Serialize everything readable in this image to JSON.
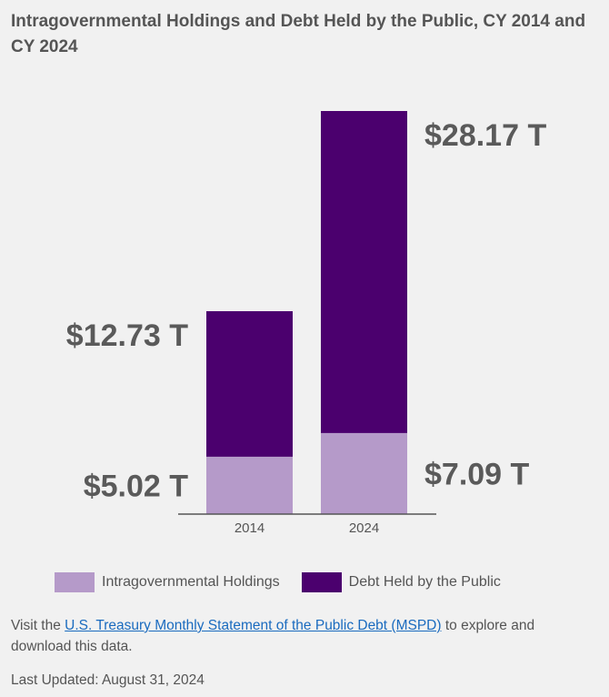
{
  "title": "Intragovernmental Holdings and Debt Held by the Public, CY 2014 and CY 2024",
  "chart_data": {
    "type": "bar",
    "stacked": true,
    "categories": [
      "2014",
      "2024"
    ],
    "series": [
      {
        "name": "Intragovernmental Holdings",
        "values": [
          5.02,
          7.09
        ],
        "labels": [
          "$5.02 T",
          "$7.09 T"
        ],
        "color": "#b59ac9"
      },
      {
        "name": "Debt Held by the Public",
        "values": [
          12.73,
          28.17
        ],
        "labels": [
          "$12.73 T",
          "$28.17 T"
        ],
        "color": "#4b006e"
      }
    ],
    "ylim": [
      0,
      35.26
    ],
    "grid": false,
    "legend_position": "bottom"
  },
  "footer": {
    "prefix": "Visit the ",
    "link_text": "U.S. Treasury Monthly Statement of the Public Debt (MSPD)",
    "suffix": " to explore and download this data."
  },
  "last_updated": "Last Updated: August 31, 2024"
}
